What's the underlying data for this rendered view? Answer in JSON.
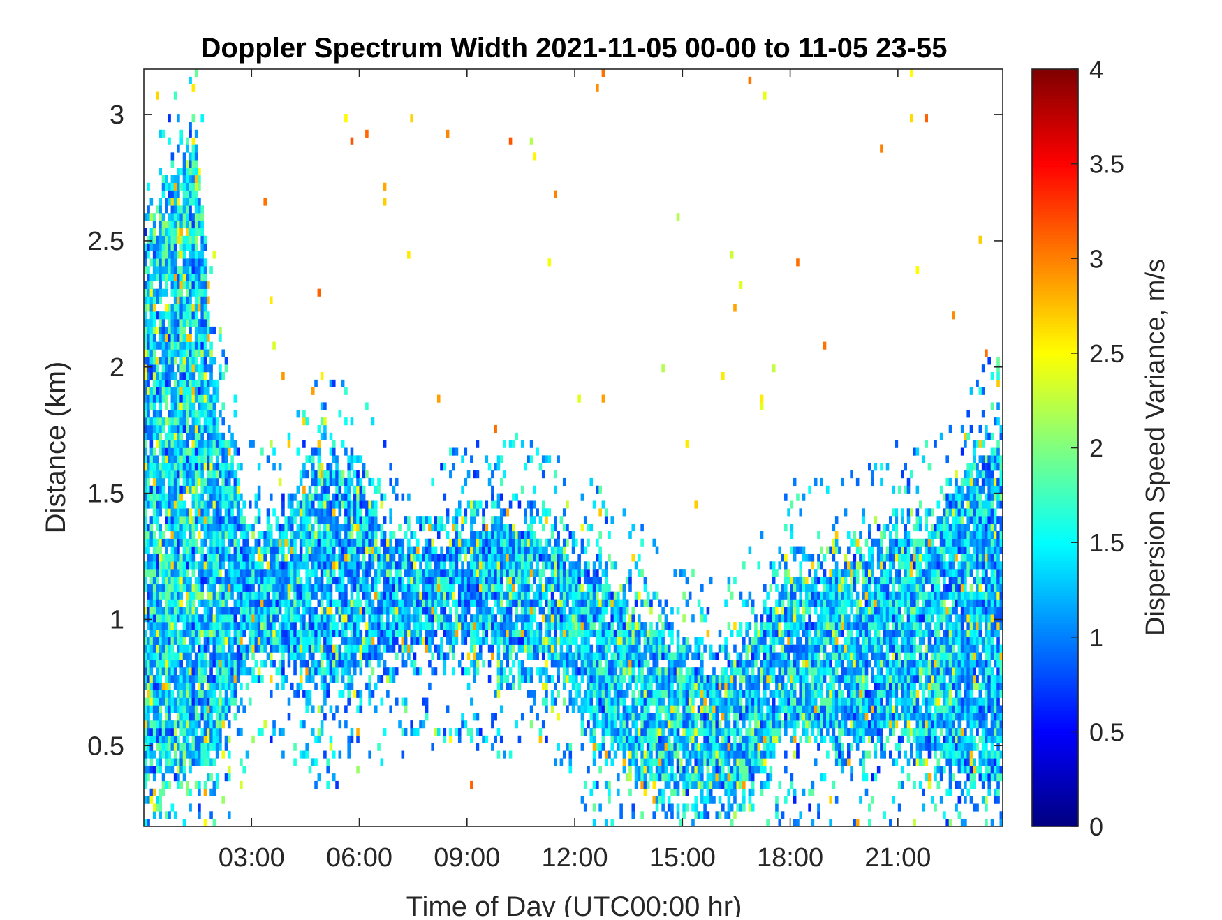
{
  "chart_data": {
    "type": "heatmap",
    "title": "Doppler Spectrum Width 2021-11-05 00-00 to 11-05 23-55",
    "xlabel": "Time of Day (UTC00:00 hr)",
    "ylabel": "Distance (km)",
    "colorbar_label": "Dispersion Speed Variance, m/s",
    "colormap": "jet",
    "xlim_hours": [
      0,
      23.92
    ],
    "ylim_km": [
      0.18,
      3.18
    ],
    "clim": [
      0,
      4
    ],
    "x_ticks": [
      {
        "hours": 3,
        "label": "03:00"
      },
      {
        "hours": 6,
        "label": "06:00"
      },
      {
        "hours": 9,
        "label": "09:00"
      },
      {
        "hours": 12,
        "label": "12:00"
      },
      {
        "hours": 15,
        "label": "15:00"
      },
      {
        "hours": 18,
        "label": "18:00"
      },
      {
        "hours": 21,
        "label": "21:00"
      }
    ],
    "y_ticks": [
      {
        "km": 0.5,
        "label": "0.5"
      },
      {
        "km": 1,
        "label": "1"
      },
      {
        "km": 1.5,
        "label": "1.5"
      },
      {
        "km": 2,
        "label": "2"
      },
      {
        "km": 2.5,
        "label": "2.5"
      },
      {
        "km": 3,
        "label": "3"
      }
    ],
    "colorbar_ticks": [
      {
        "value": 0,
        "label": "0"
      },
      {
        "value": 0.5,
        "label": "0.5"
      },
      {
        "value": 1,
        "label": "1"
      },
      {
        "value": 1.5,
        "label": "1.5"
      },
      {
        "value": 2,
        "label": "2"
      },
      {
        "value": 2.5,
        "label": "2.5"
      },
      {
        "value": 3,
        "label": "3"
      },
      {
        "value": 3.5,
        "label": "3.5"
      },
      {
        "value": 4,
        "label": "4"
      }
    ],
    "echo_envelope": [
      {
        "hours": 0.0,
        "bottom_km": 0.25,
        "top_km": 2.6,
        "mean": 1.4
      },
      {
        "hours": 0.5,
        "bottom_km": 0.25,
        "top_km": 2.75,
        "mean": 1.45
      },
      {
        "hours": 1.0,
        "bottom_km": 0.3,
        "top_km": 2.9,
        "mean": 1.45
      },
      {
        "hours": 1.5,
        "bottom_km": 0.3,
        "top_km": 3.0,
        "mean": 1.45
      },
      {
        "hours": 2.0,
        "bottom_km": 0.3,
        "top_km": 1.95,
        "mean": 1.35
      },
      {
        "hours": 2.5,
        "bottom_km": 0.6,
        "top_km": 1.75,
        "mean": 1.3
      },
      {
        "hours": 3.0,
        "bottom_km": 0.75,
        "top_km": 1.45,
        "mean": 1.3
      },
      {
        "hours": 4.0,
        "bottom_km": 0.75,
        "top_km": 1.5,
        "mean": 1.3
      },
      {
        "hours": 5.0,
        "bottom_km": 0.6,
        "top_km": 1.75,
        "mean": 1.25
      },
      {
        "hours": 6.0,
        "bottom_km": 0.7,
        "top_km": 1.65,
        "mean": 1.25
      },
      {
        "hours": 7.0,
        "bottom_km": 0.75,
        "top_km": 1.4,
        "mean": 1.25
      },
      {
        "hours": 8.0,
        "bottom_km": 0.78,
        "top_km": 1.4,
        "mean": 1.25
      },
      {
        "hours": 9.0,
        "bottom_km": 0.78,
        "top_km": 1.45,
        "mean": 1.25
      },
      {
        "hours": 10.0,
        "bottom_km": 0.75,
        "top_km": 1.5,
        "mean": 1.3
      },
      {
        "hours": 11.0,
        "bottom_km": 0.75,
        "top_km": 1.45,
        "mean": 1.35
      },
      {
        "hours": 12.0,
        "bottom_km": 0.6,
        "top_km": 1.35,
        "mean": 1.35
      },
      {
        "hours": 13.0,
        "bottom_km": 0.4,
        "top_km": 1.25,
        "mean": 1.35
      },
      {
        "hours": 14.0,
        "bottom_km": 0.25,
        "top_km": 1.1,
        "mean": 1.4
      },
      {
        "hours": 15.0,
        "bottom_km": 0.2,
        "top_km": 0.95,
        "mean": 1.4
      },
      {
        "hours": 16.0,
        "bottom_km": 0.2,
        "top_km": 0.9,
        "mean": 1.4
      },
      {
        "hours": 17.0,
        "bottom_km": 0.25,
        "top_km": 1.05,
        "mean": 1.4
      },
      {
        "hours": 18.0,
        "bottom_km": 0.45,
        "top_km": 1.3,
        "mean": 1.35
      },
      {
        "hours": 19.0,
        "bottom_km": 0.45,
        "top_km": 1.3,
        "mean": 1.35
      },
      {
        "hours": 20.0,
        "bottom_km": 0.4,
        "top_km": 1.35,
        "mean": 1.35
      },
      {
        "hours": 21.0,
        "bottom_km": 0.45,
        "top_km": 1.45,
        "mean": 1.35
      },
      {
        "hours": 22.0,
        "bottom_km": 0.35,
        "top_km": 1.45,
        "mean": 1.35
      },
      {
        "hours": 23.0,
        "bottom_km": 0.25,
        "top_km": 1.75,
        "mean": 1.3
      },
      {
        "hours": 23.92,
        "bottom_km": 0.25,
        "top_km": 1.8,
        "mean": 1.3
      }
    ]
  }
}
